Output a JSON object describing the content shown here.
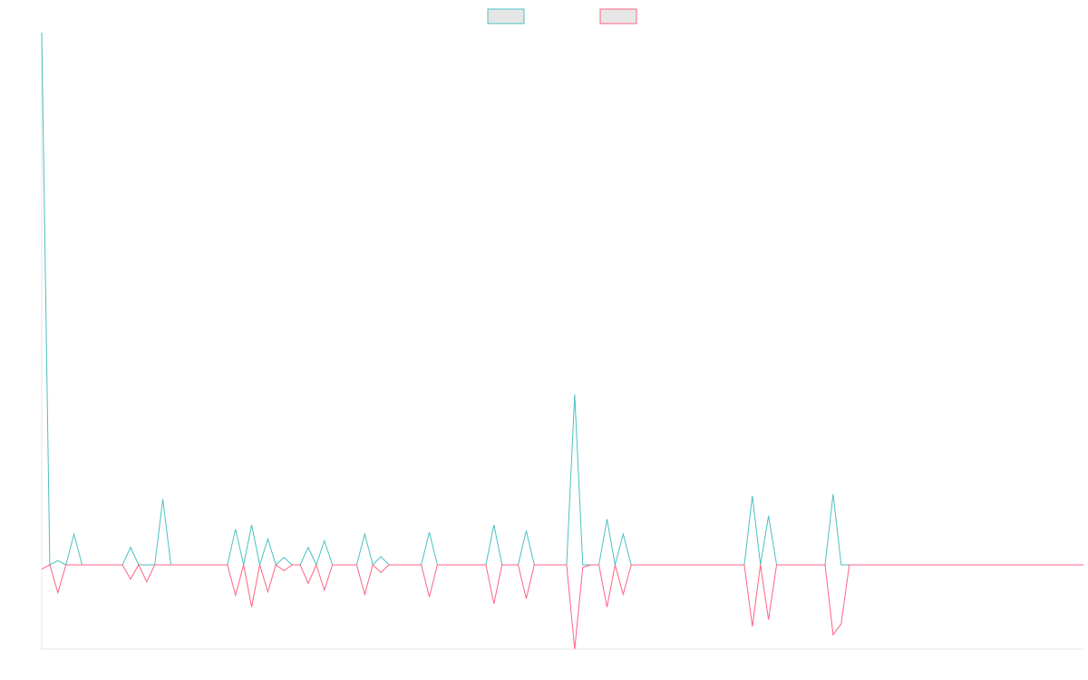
{
  "chart_data": {
    "type": "line",
    "title": "",
    "xlabel": "",
    "ylabel": "",
    "legend": {
      "position": "top-center"
    },
    "grid": false,
    "ylim": [
      -1.0,
      6.4
    ],
    "xlim": [
      0,
      127
    ],
    "series": [
      {
        "color": "#4bc0c0",
        "fill": "#e6e6e6",
        "values": [
          6.4,
          0,
          0.05,
          0,
          0.37,
          0,
          0,
          0,
          0,
          0,
          0,
          0.21,
          0,
          0,
          0,
          0.79,
          0,
          0,
          0,
          0,
          0,
          0,
          0,
          0,
          0.43,
          0,
          0.48,
          0,
          0.31,
          0,
          0.09,
          0,
          0,
          0.21,
          0,
          0.29,
          0,
          0,
          0,
          0,
          0.37,
          0,
          0.1,
          0,
          0,
          0,
          0,
          0,
          0.39,
          0,
          0,
          0,
          0,
          0,
          0,
          0,
          0.48,
          0,
          0,
          0,
          0.41,
          0,
          0,
          0,
          0,
          0,
          2.05,
          0,
          0,
          0,
          0.55,
          0,
          0.37,
          0,
          0,
          0,
          0,
          0,
          0,
          0,
          0,
          0,
          0,
          0,
          0,
          0,
          0,
          0,
          0.83,
          0,
          0.59,
          0,
          0,
          0,
          0,
          0,
          0,
          0,
          0.85,
          0,
          0,
          0,
          0,
          0,
          0,
          0,
          0,
          0,
          0,
          0,
          0,
          0,
          0,
          0,
          0,
          0,
          0,
          0,
          0,
          0,
          0,
          0,
          0,
          0,
          0,
          0,
          0,
          0,
          0,
          0
        ]
      },
      {
        "color": "#ff6384",
        "fill": "#e6e6e6",
        "values": [
          -0.05,
          0,
          -0.33,
          0,
          0,
          0,
          0,
          0,
          0,
          0,
          0,
          -0.17,
          0,
          -0.2,
          0,
          0,
          0,
          0,
          0,
          0,
          0,
          0,
          0,
          0,
          -0.36,
          0,
          -0.5,
          0,
          -0.32,
          0,
          -0.07,
          0,
          0,
          -0.22,
          0,
          -0.3,
          0,
          0,
          0,
          0,
          -0.35,
          0,
          -0.09,
          0,
          0,
          0,
          0,
          0,
          -0.38,
          0,
          0,
          0,
          0,
          0,
          0,
          0,
          -0.46,
          0,
          0,
          0,
          -0.4,
          0,
          0,
          0,
          0,
          0,
          -1.0,
          -0.03,
          0,
          0,
          -0.5,
          0,
          -0.35,
          0,
          0,
          0,
          0,
          0,
          0,
          0,
          0,
          0,
          0,
          0,
          0,
          0,
          0,
          0,
          -0.73,
          0,
          -0.65,
          0,
          0,
          0,
          0,
          0,
          0,
          0,
          -0.83,
          -0.7,
          0,
          0,
          0,
          0,
          0,
          0,
          0,
          0,
          0,
          0,
          0,
          0,
          0,
          0,
          0,
          0,
          0,
          0,
          0,
          0,
          0,
          0,
          0,
          0,
          0,
          0,
          0,
          0,
          0,
          0
        ]
      }
    ]
  }
}
